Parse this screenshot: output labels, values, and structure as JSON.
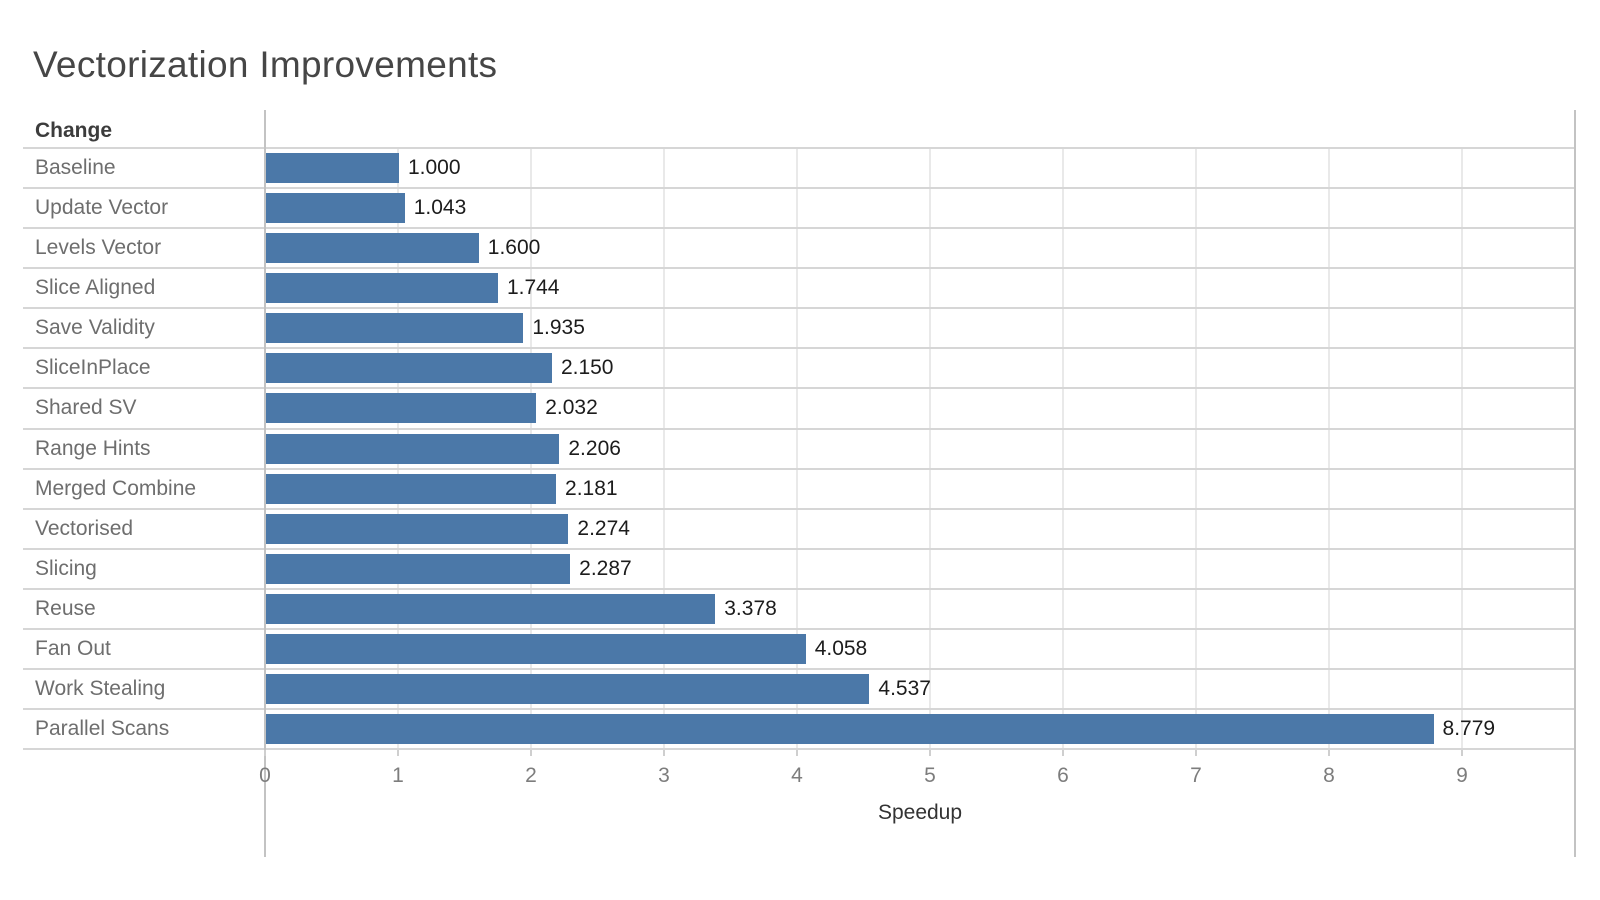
{
  "title": "Vectorization Improvements",
  "row_header": "Change",
  "chart_data": {
    "type": "bar",
    "orientation": "horizontal",
    "title": "Vectorization Improvements",
    "ylabel": "Change",
    "xlabel": "Speedup",
    "xlim": [
      0,
      9.85
    ],
    "x_ticks": [
      0,
      1,
      2,
      3,
      4,
      5,
      6,
      7,
      8,
      9
    ],
    "grid": "vertical gridlines at integer ticks, horizontal row separators",
    "legend_position": "none",
    "categories": [
      "Baseline",
      "Update Vector",
      "Levels Vector",
      "Slice Aligned",
      "Save Validity",
      "SliceInPlace",
      "Shared SV",
      "Range Hints",
      "Merged Combine",
      "Vectorised",
      "Slicing",
      "Reuse",
      "Fan Out",
      "Work Stealing",
      "Parallel Scans"
    ],
    "values": [
      1.0,
      1.043,
      1.6,
      1.744,
      1.935,
      2.15,
      2.032,
      2.206,
      2.181,
      2.274,
      2.287,
      3.378,
      4.058,
      4.537,
      8.779
    ],
    "value_labels": [
      "1.000",
      "1.043",
      "1.600",
      "1.744",
      "1.935",
      "2.150",
      "2.032",
      "2.206",
      "2.181",
      "2.274",
      "2.287",
      "3.378",
      "4.058",
      "4.537",
      "8.779"
    ]
  },
  "colors": {
    "bar": "#4b78a8",
    "title_text": "#464646",
    "row_label_text": "#6e6e6e",
    "value_text": "#1c1c1c",
    "tick_text": "#7d7d7d",
    "axis_title_text": "#333333",
    "row_line": "#d6d6d6",
    "gridline": "#e9e9e9",
    "frame_line": "#c3c3c3",
    "tick_mark": "#cfcfcf"
  }
}
